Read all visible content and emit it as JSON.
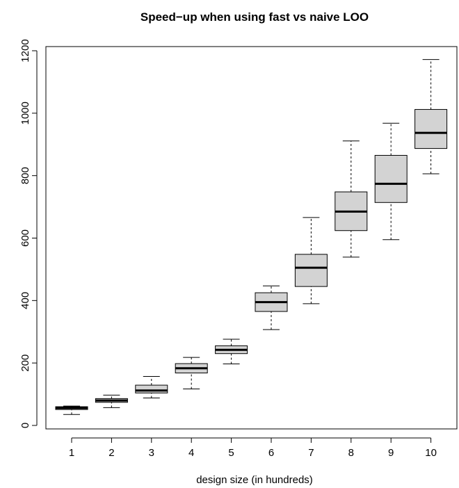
{
  "chart_data": {
    "type": "boxplot",
    "title": "Speed−up when using fast vs naive LOO",
    "xlabel": "design size (in hundreds)",
    "ylabel": "",
    "categories": [
      "1",
      "2",
      "3",
      "4",
      "5",
      "6",
      "7",
      "8",
      "9",
      "10"
    ],
    "ylim": [
      0,
      1200
    ],
    "yticks": [
      0,
      200,
      400,
      600,
      800,
      1000,
      1200
    ],
    "boxes": [
      {
        "category": "1",
        "min": 35,
        "q1": 51,
        "median": 56,
        "q3": 60,
        "max": 62
      },
      {
        "category": "2",
        "min": 57,
        "q1": 74,
        "median": 80,
        "q3": 86,
        "max": 97
      },
      {
        "category": "3",
        "min": 88,
        "q1": 104,
        "median": 112,
        "q3": 129,
        "max": 157
      },
      {
        "category": "4",
        "min": 117,
        "q1": 168,
        "median": 183,
        "q3": 198,
        "max": 218
      },
      {
        "category": "5",
        "min": 197,
        "q1": 230,
        "median": 242,
        "q3": 255,
        "max": 276
      },
      {
        "category": "6",
        "min": 307,
        "q1": 365,
        "median": 395,
        "q3": 425,
        "max": 447
      },
      {
        "category": "7",
        "min": 390,
        "q1": 445,
        "median": 505,
        "q3": 548,
        "max": 666
      },
      {
        "category": "8",
        "min": 539,
        "q1": 624,
        "median": 685,
        "q3": 748,
        "max": 911
      },
      {
        "category": "9",
        "min": 595,
        "q1": 714,
        "median": 774,
        "q3": 865,
        "max": 968
      },
      {
        "category": "10",
        "min": 806,
        "q1": 887,
        "median": 937,
        "q3": 1012,
        "max": 1172
      }
    ],
    "grid": false,
    "legend": "none",
    "colors": {
      "box_fill": "#d3d3d3",
      "stroke": "#000000",
      "background": "#ffffff"
    }
  }
}
